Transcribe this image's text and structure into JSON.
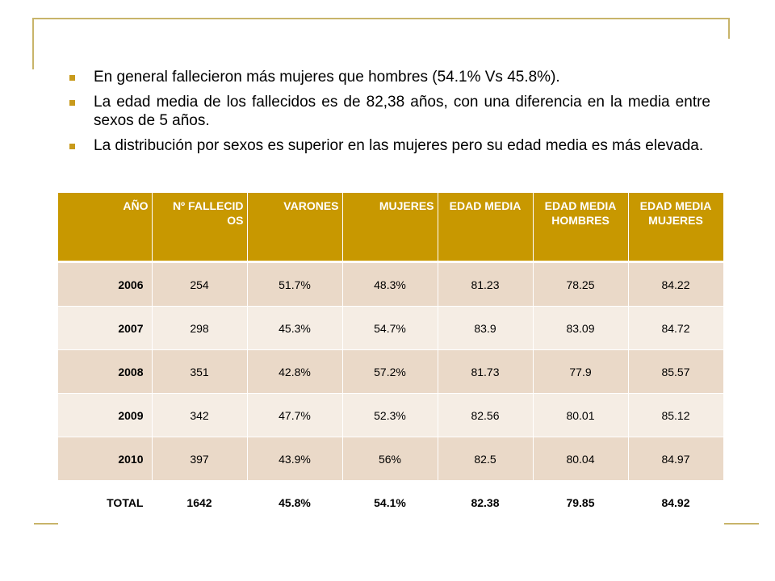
{
  "bullets": [
    "En general fallecieron más mujeres que hombres (54.1% Vs 45.8%).",
    "La edad media de los fallecidos es de 82,38 años, con una diferencia en la media entre sexos de 5 años.",
    "La distribución por sexos es superior en las mujeres pero su edad media es más elevada."
  ],
  "colors": {
    "header_bg": "#c89800",
    "row_dark": "#ead9c8",
    "row_light": "#f5ede4",
    "frame": "#c8b46a",
    "bullet": "#c89a1c"
  },
  "table": {
    "headers": [
      "AÑO",
      "Nº FALLECID OS",
      "VARONES",
      "MUJERES",
      "EDAD MEDIA",
      "EDAD MEDIA HOMBRES",
      "EDAD MEDIA MUJERES"
    ],
    "rows": [
      [
        "2006",
        "254",
        "51.7%",
        "48.3%",
        "81.23",
        "78.25",
        "84.22"
      ],
      [
        "2007",
        "298",
        "45.3%",
        "54.7%",
        "83.9",
        "83.09",
        "84.72"
      ],
      [
        "2008",
        "351",
        "42.8%",
        "57.2%",
        "81.73",
        "77.9",
        "85.57"
      ],
      [
        "2009",
        "342",
        "47.7%",
        "52.3%",
        "82.56",
        "80.01",
        "85.12"
      ],
      [
        "2010",
        "397",
        "43.9%",
        "56%",
        "82.5",
        "80.04",
        "84.97"
      ]
    ],
    "total": [
      "TOTAL",
      "1642",
      "45.8%",
      "54.1%",
      "82.38",
      "79.85",
      "84.92"
    ]
  }
}
